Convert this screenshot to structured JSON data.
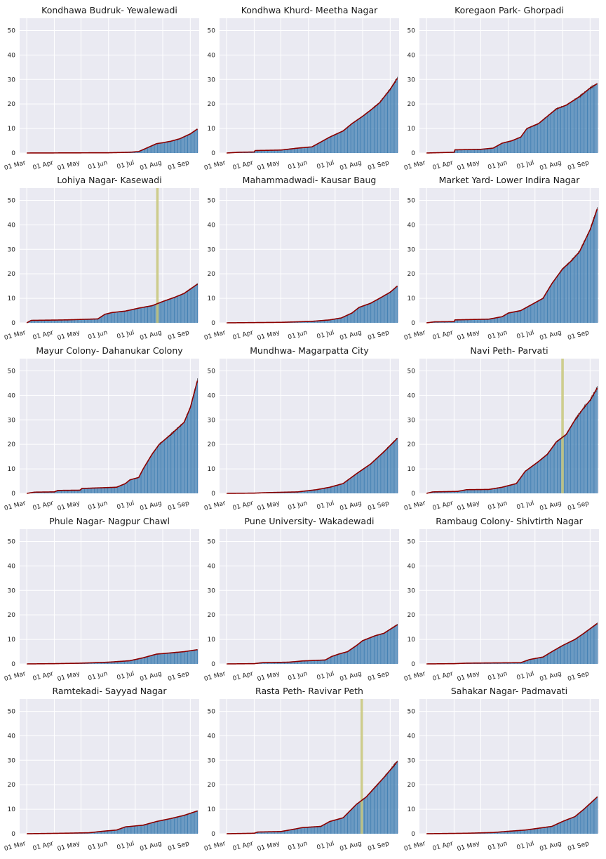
{
  "colors": {
    "background": "#ffffff",
    "plot_background": "#eaeaf2",
    "grid": "#ffffff",
    "bar": "#4682b4",
    "trend_line": "#8b0000",
    "noise": "#111111",
    "spike": "#c8c77a"
  },
  "axis": {
    "ylim": [
      0,
      55
    ],
    "yticks": [
      0,
      10,
      20,
      30,
      40,
      50
    ],
    "xlim": [
      "2020-02-22",
      "2020-09-11"
    ],
    "xticks": [
      {
        "date": "2020-03-01",
        "label": "01 Mar"
      },
      {
        "date": "2020-04-01",
        "label": "01 Apr"
      },
      {
        "date": "2020-05-01",
        "label": "01 May"
      },
      {
        "date": "2020-06-01",
        "label": "01 Jun"
      },
      {
        "date": "2020-07-01",
        "label": "01 Jul"
      },
      {
        "date": "2020-08-01",
        "label": "01 Aug"
      },
      {
        "date": "2020-09-01",
        "label": "01 Sep"
      }
    ]
  },
  "chart_data": [
    {
      "type": "bar",
      "title": "Kondhawa Budruk- Yewalewadi",
      "series_points": [
        [
          "2020-03-01",
          0
        ],
        [
          "2020-06-01",
          0.1
        ],
        [
          "2020-06-25",
          0.3
        ],
        [
          "2020-07-05",
          0.6
        ],
        [
          "2020-07-15",
          2.2
        ],
        [
          "2020-07-25",
          3.8
        ],
        [
          "2020-08-01",
          4.2
        ],
        [
          "2020-08-10",
          4.8
        ],
        [
          "2020-08-20",
          5.8
        ],
        [
          "2020-09-01",
          7.8
        ],
        [
          "2020-09-09",
          9.8
        ]
      ]
    },
    {
      "type": "bar",
      "title": "Kondhwa Khurd- Meetha Nagar",
      "series_points": [
        [
          "2020-03-01",
          0
        ],
        [
          "2020-03-15",
          0.3
        ],
        [
          "2020-04-01",
          0.4
        ],
        [
          "2020-04-02",
          1
        ],
        [
          "2020-05-01",
          1.2
        ],
        [
          "2020-05-20",
          2
        ],
        [
          "2020-06-05",
          2.5
        ],
        [
          "2020-06-15",
          4.5
        ],
        [
          "2020-06-25",
          6.5
        ],
        [
          "2020-07-10",
          9
        ],
        [
          "2020-07-20",
          12
        ],
        [
          "2020-08-01",
          15
        ],
        [
          "2020-08-10",
          17.5
        ],
        [
          "2020-08-20",
          20.5
        ],
        [
          "2020-09-01",
          26
        ],
        [
          "2020-09-09",
          30.5
        ]
      ]
    },
    {
      "type": "bar",
      "title": "Koregaon Park- Ghorpadi",
      "series_points": [
        [
          "2020-03-01",
          0
        ],
        [
          "2020-04-01",
          0.3
        ],
        [
          "2020-04-02",
          1.3
        ],
        [
          "2020-05-01",
          1.5
        ],
        [
          "2020-05-15",
          2
        ],
        [
          "2020-05-25",
          4
        ],
        [
          "2020-06-05",
          5
        ],
        [
          "2020-06-15",
          6.5
        ],
        [
          "2020-06-22",
          10
        ],
        [
          "2020-07-05",
          12
        ],
        [
          "2020-07-15",
          15
        ],
        [
          "2020-07-25",
          18
        ],
        [
          "2020-08-05",
          19.5
        ],
        [
          "2020-08-20",
          23
        ],
        [
          "2020-09-01",
          26.5
        ],
        [
          "2020-09-09",
          28.3
        ]
      ]
    },
    {
      "type": "bar",
      "title": "Lohiya Nagar- Kasewadi",
      "spike_date": "2020-07-26",
      "series_points": [
        [
          "2020-03-01",
          0
        ],
        [
          "2020-03-06",
          1
        ],
        [
          "2020-04-15",
          1.2
        ],
        [
          "2020-05-20",
          1.6
        ],
        [
          "2020-05-28",
          3.5
        ],
        [
          "2020-06-05",
          4.2
        ],
        [
          "2020-06-20",
          4.8
        ],
        [
          "2020-07-05",
          6
        ],
        [
          "2020-07-20",
          7
        ],
        [
          "2020-08-01",
          8.7
        ],
        [
          "2020-08-15",
          10.5
        ],
        [
          "2020-08-25",
          12
        ],
        [
          "2020-09-09",
          15.8
        ]
      ]
    },
    {
      "type": "bar",
      "title": "Mahammadwadi- Kausar Baug",
      "series_points": [
        [
          "2020-03-01",
          0
        ],
        [
          "2020-05-01",
          0.2
        ],
        [
          "2020-06-05",
          0.6
        ],
        [
          "2020-06-25",
          1.2
        ],
        [
          "2020-07-08",
          2
        ],
        [
          "2020-07-20",
          4
        ],
        [
          "2020-07-28",
          6.3
        ],
        [
          "2020-08-10",
          8
        ],
        [
          "2020-08-20",
          10
        ],
        [
          "2020-09-01",
          12.5
        ],
        [
          "2020-09-09",
          15
        ]
      ]
    },
    {
      "type": "bar",
      "title": "Market Yard- Lower Indira Nagar",
      "series_points": [
        [
          "2020-03-01",
          0
        ],
        [
          "2020-03-10",
          0.4
        ],
        [
          "2020-04-01",
          0.5
        ],
        [
          "2020-04-02",
          1.2
        ],
        [
          "2020-05-10",
          1.5
        ],
        [
          "2020-05-25",
          2.5
        ],
        [
          "2020-06-01",
          4
        ],
        [
          "2020-06-15",
          5
        ],
        [
          "2020-06-25",
          7
        ],
        [
          "2020-07-10",
          10
        ],
        [
          "2020-07-20",
          16
        ],
        [
          "2020-08-01",
          22
        ],
        [
          "2020-08-10",
          25
        ],
        [
          "2020-08-20",
          29
        ],
        [
          "2020-09-01",
          38
        ],
        [
          "2020-09-09",
          46.5
        ]
      ]
    },
    {
      "type": "bar",
      "title": "Mayur Colony- Dahanukar Colony",
      "series_points": [
        [
          "2020-03-01",
          0
        ],
        [
          "2020-03-10",
          0.5
        ],
        [
          "2020-04-01",
          0.6
        ],
        [
          "2020-04-05",
          1.2
        ],
        [
          "2020-04-30",
          1.3
        ],
        [
          "2020-05-02",
          2
        ],
        [
          "2020-06-10",
          2.5
        ],
        [
          "2020-06-20",
          4
        ],
        [
          "2020-06-25",
          5.5
        ],
        [
          "2020-07-05",
          6.5
        ],
        [
          "2020-07-10",
          10
        ],
        [
          "2020-07-20",
          16
        ],
        [
          "2020-07-28",
          20
        ],
        [
          "2020-08-10",
          24
        ],
        [
          "2020-08-25",
          29
        ],
        [
          "2020-09-01",
          35
        ],
        [
          "2020-09-09",
          46
        ]
      ]
    },
    {
      "type": "bar",
      "title": "Mundhwa- Magarpatta City",
      "series_points": [
        [
          "2020-03-01",
          0
        ],
        [
          "2020-04-01",
          0.1
        ],
        [
          "2020-04-15",
          0.3
        ],
        [
          "2020-05-20",
          0.6
        ],
        [
          "2020-06-10",
          1.5
        ],
        [
          "2020-06-25",
          2.5
        ],
        [
          "2020-07-10",
          4
        ],
        [
          "2020-07-25",
          8
        ],
        [
          "2020-08-10",
          12
        ],
        [
          "2020-08-25",
          17
        ],
        [
          "2020-09-09",
          22.5
        ]
      ]
    },
    {
      "type": "bar",
      "title": "Navi Peth- Parvati",
      "spike_date": "2020-08-01",
      "series_points": [
        [
          "2020-03-01",
          0
        ],
        [
          "2020-03-08",
          0.6
        ],
        [
          "2020-04-05",
          0.8
        ],
        [
          "2020-04-15",
          1.5
        ],
        [
          "2020-05-10",
          1.6
        ],
        [
          "2020-05-25",
          2.5
        ],
        [
          "2020-06-10",
          4
        ],
        [
          "2020-06-20",
          9
        ],
        [
          "2020-07-05",
          13
        ],
        [
          "2020-07-15",
          16
        ],
        [
          "2020-07-25",
          21
        ],
        [
          "2020-08-05",
          24
        ],
        [
          "2020-08-15",
          30
        ],
        [
          "2020-08-25",
          35
        ],
        [
          "2020-09-01",
          38
        ],
        [
          "2020-09-09",
          43
        ]
      ]
    },
    {
      "type": "bar",
      "title": "Phule Nagar- Nagpur Chawl",
      "series_points": [
        [
          "2020-03-01",
          0
        ],
        [
          "2020-04-01",
          0.1
        ],
        [
          "2020-05-01",
          0.3
        ],
        [
          "2020-06-01",
          0.7
        ],
        [
          "2020-06-25",
          1.3
        ],
        [
          "2020-07-10",
          2.5
        ],
        [
          "2020-07-25",
          4
        ],
        [
          "2020-08-10",
          4.5
        ],
        [
          "2020-08-25",
          5
        ],
        [
          "2020-09-09",
          5.8
        ]
      ]
    },
    {
      "type": "bar",
      "title": "Pune University- Wakadewadi",
      "series_points": [
        [
          "2020-03-01",
          0
        ],
        [
          "2020-04-01",
          0.1
        ],
        [
          "2020-04-10",
          0.5
        ],
        [
          "2020-05-10",
          0.7
        ],
        [
          "2020-05-25",
          1.2
        ],
        [
          "2020-06-20",
          1.6
        ],
        [
          "2020-06-27",
          3
        ],
        [
          "2020-07-05",
          4
        ],
        [
          "2020-07-15",
          5
        ],
        [
          "2020-07-25",
          7.5
        ],
        [
          "2020-08-01",
          9.5
        ],
        [
          "2020-08-15",
          11.5
        ],
        [
          "2020-08-25",
          12.5
        ],
        [
          "2020-09-09",
          16
        ]
      ]
    },
    {
      "type": "bar",
      "title": "Rambaug Colony- Shivtirth Nagar",
      "series_points": [
        [
          "2020-03-01",
          0
        ],
        [
          "2020-04-01",
          0.1
        ],
        [
          "2020-04-15",
          0.3
        ],
        [
          "2020-06-15",
          0.5
        ],
        [
          "2020-06-25",
          1.8
        ],
        [
          "2020-07-10",
          2.8
        ],
        [
          "2020-07-20",
          5
        ],
        [
          "2020-08-01",
          7.5
        ],
        [
          "2020-08-15",
          10
        ],
        [
          "2020-08-25",
          12.5
        ],
        [
          "2020-09-09",
          16.5
        ]
      ]
    },
    {
      "type": "bar",
      "title": "Ramtekadi- Sayyad Nagar",
      "series_points": [
        [
          "2020-03-01",
          0
        ],
        [
          "2020-04-10",
          0.2
        ],
        [
          "2020-05-10",
          0.4
        ],
        [
          "2020-05-25",
          1
        ],
        [
          "2020-06-10",
          1.5
        ],
        [
          "2020-06-20",
          2.8
        ],
        [
          "2020-07-10",
          3.5
        ],
        [
          "2020-07-25",
          5
        ],
        [
          "2020-08-10",
          6.2
        ],
        [
          "2020-08-25",
          7.5
        ],
        [
          "2020-09-09",
          9.3
        ]
      ]
    },
    {
      "type": "bar",
      "title": "Rasta Peth- Ravivar Peth",
      "spike_date": "2020-07-31",
      "series_points": [
        [
          "2020-03-01",
          0
        ],
        [
          "2020-04-01",
          0.2
        ],
        [
          "2020-04-05",
          0.7
        ],
        [
          "2020-05-01",
          0.9
        ],
        [
          "2020-05-15",
          1.8
        ],
        [
          "2020-05-25",
          2.5
        ],
        [
          "2020-06-15",
          3
        ],
        [
          "2020-06-25",
          5
        ],
        [
          "2020-07-10",
          6.5
        ],
        [
          "2020-07-25",
          12
        ],
        [
          "2020-08-05",
          15
        ],
        [
          "2020-08-15",
          19
        ],
        [
          "2020-08-25",
          23
        ],
        [
          "2020-09-01",
          26
        ],
        [
          "2020-09-09",
          29.5
        ]
      ]
    },
    {
      "type": "bar",
      "title": "Sahakar Nagar- Padmavati",
      "series_points": [
        [
          "2020-03-01",
          0
        ],
        [
          "2020-04-15",
          0.2
        ],
        [
          "2020-05-15",
          0.5
        ],
        [
          "2020-06-01",
          1
        ],
        [
          "2020-06-20",
          1.5
        ],
        [
          "2020-07-10",
          2.5
        ],
        [
          "2020-07-20",
          3
        ],
        [
          "2020-08-01",
          5
        ],
        [
          "2020-08-15",
          7
        ],
        [
          "2020-08-25",
          10
        ],
        [
          "2020-09-09",
          15
        ]
      ]
    }
  ]
}
